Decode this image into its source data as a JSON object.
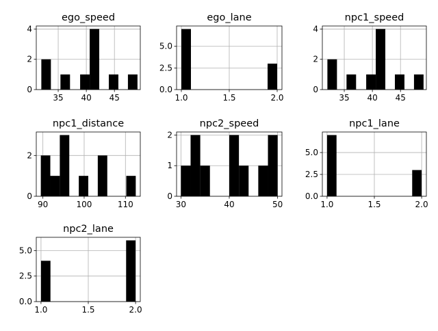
{
  "figure": {
    "background": "#ffffff"
  },
  "chart_data": [
    {
      "type": "bar",
      "title": "ego_speed",
      "xlabel": "",
      "ylabel": "",
      "xlim": [
        31.1,
        49.6
      ],
      "ylim": [
        0,
        4.2
      ],
      "xticks": [
        35,
        40,
        45
      ],
      "xtick_labels": [
        "35",
        "40",
        "45"
      ],
      "yticks": [
        0,
        2,
        4
      ],
      "ytick_labels": [
        "0",
        "2",
        "4"
      ],
      "grid": true,
      "color": "#000000",
      "bins": [
        {
          "x0": 32,
          "x1": 33.7,
          "count": 2
        },
        {
          "x0": 33.7,
          "x1": 35.4,
          "count": 0
        },
        {
          "x0": 35.4,
          "x1": 37.1,
          "count": 1
        },
        {
          "x0": 37.1,
          "x1": 38.9,
          "count": 0
        },
        {
          "x0": 38.9,
          "x1": 40.6,
          "count": 1
        },
        {
          "x0": 40.6,
          "x1": 42.3,
          "count": 4
        },
        {
          "x0": 42.3,
          "x1": 44.0,
          "count": 0
        },
        {
          "x0": 44.0,
          "x1": 45.7,
          "count": 1
        },
        {
          "x0": 45.7,
          "x1": 47.4,
          "count": 0
        },
        {
          "x0": 47.4,
          "x1": 49.1,
          "count": 1
        }
      ]
    },
    {
      "type": "bar",
      "title": "ego_lane",
      "xlabel": "",
      "ylabel": "",
      "xlim": [
        0.95,
        2.05
      ],
      "ylim": [
        0,
        7.35
      ],
      "xticks": [
        1.0,
        1.5,
        2.0
      ],
      "xtick_labels": [
        "1.0",
        "1.5",
        "2.0"
      ],
      "yticks": [
        0,
        2.5,
        5.0
      ],
      "ytick_labels": [
        "0.0",
        "2.5",
        "5.0"
      ],
      "grid": true,
      "color": "#000000",
      "bins": [
        {
          "x0": 1.0,
          "x1": 1.1,
          "count": 7
        },
        {
          "x0": 1.1,
          "x1": 1.2,
          "count": 0
        },
        {
          "x0": 1.2,
          "x1": 1.3,
          "count": 0
        },
        {
          "x0": 1.3,
          "x1": 1.4,
          "count": 0
        },
        {
          "x0": 1.4,
          "x1": 1.5,
          "count": 0
        },
        {
          "x0": 1.5,
          "x1": 1.6,
          "count": 0
        },
        {
          "x0": 1.6,
          "x1": 1.7,
          "count": 0
        },
        {
          "x0": 1.7,
          "x1": 1.8,
          "count": 0
        },
        {
          "x0": 1.8,
          "x1": 1.9,
          "count": 0
        },
        {
          "x0": 1.9,
          "x1": 2.0,
          "count": 3
        }
      ]
    },
    {
      "type": "bar",
      "title": "npc1_speed",
      "xlabel": "",
      "ylabel": "",
      "xlim": [
        31.1,
        49.6
      ],
      "ylim": [
        0,
        4.2
      ],
      "xticks": [
        35,
        40,
        45
      ],
      "xtick_labels": [
        "35",
        "40",
        "45"
      ],
      "yticks": [
        0,
        2,
        4
      ],
      "ytick_labels": [
        "0",
        "2",
        "4"
      ],
      "grid": true,
      "color": "#000000",
      "bins": [
        {
          "x0": 32,
          "x1": 33.7,
          "count": 2
        },
        {
          "x0": 33.7,
          "x1": 35.4,
          "count": 0
        },
        {
          "x0": 35.4,
          "x1": 37.1,
          "count": 1
        },
        {
          "x0": 37.1,
          "x1": 38.9,
          "count": 0
        },
        {
          "x0": 38.9,
          "x1": 40.6,
          "count": 1
        },
        {
          "x0": 40.6,
          "x1": 42.3,
          "count": 4
        },
        {
          "x0": 42.3,
          "x1": 44.0,
          "count": 0
        },
        {
          "x0": 44.0,
          "x1": 45.7,
          "count": 1
        },
        {
          "x0": 45.7,
          "x1": 47.4,
          "count": 0
        },
        {
          "x0": 47.4,
          "x1": 49.1,
          "count": 1
        }
      ]
    },
    {
      "type": "bar",
      "title": "npc1_distance",
      "xlabel": "",
      "ylabel": "",
      "xlim": [
        88.4,
        113.6
      ],
      "ylim": [
        0,
        3.15
      ],
      "xticks": [
        90,
        100,
        110
      ],
      "xtick_labels": [
        "90",
        "100",
        "110"
      ],
      "yticks": [
        0,
        2
      ],
      "ytick_labels": [
        "0",
        "2"
      ],
      "grid": true,
      "color": "#000000",
      "bins": [
        {
          "x0": 89.5,
          "x1": 91.8,
          "count": 2
        },
        {
          "x0": 91.8,
          "x1": 94.1,
          "count": 1
        },
        {
          "x0": 94.1,
          "x1": 96.4,
          "count": 3
        },
        {
          "x0": 96.4,
          "x1": 98.7,
          "count": 0
        },
        {
          "x0": 98.7,
          "x1": 101.0,
          "count": 1
        },
        {
          "x0": 101.0,
          "x1": 103.3,
          "count": 0
        },
        {
          "x0": 103.3,
          "x1": 105.6,
          "count": 2
        },
        {
          "x0": 105.6,
          "x1": 107.9,
          "count": 0
        },
        {
          "x0": 107.9,
          "x1": 110.2,
          "count": 0
        },
        {
          "x0": 110.2,
          "x1": 112.5,
          "count": 1
        }
      ]
    },
    {
      "type": "bar",
      "title": "npc2_speed",
      "xlabel": "",
      "ylabel": "",
      "xlim": [
        29.1,
        50.9
      ],
      "ylim": [
        0,
        2.1
      ],
      "xticks": [
        30,
        40,
        50
      ],
      "xtick_labels": [
        "30",
        "40",
        "50"
      ],
      "yticks": [
        0,
        1,
        2
      ],
      "ytick_labels": [
        "0",
        "1",
        "2"
      ],
      "grid": true,
      "color": "#000000",
      "bins": [
        {
          "x0": 30,
          "x1": 32,
          "count": 1
        },
        {
          "x0": 32,
          "x1": 34,
          "count": 2
        },
        {
          "x0": 34,
          "x1": 36,
          "count": 1
        },
        {
          "x0": 36,
          "x1": 38,
          "count": 0
        },
        {
          "x0": 38,
          "x1": 40,
          "count": 0
        },
        {
          "x0": 40,
          "x1": 42,
          "count": 2
        },
        {
          "x0": 42,
          "x1": 44,
          "count": 1
        },
        {
          "x0": 44,
          "x1": 46,
          "count": 0
        },
        {
          "x0": 46,
          "x1": 48,
          "count": 1
        },
        {
          "x0": 48,
          "x1": 50,
          "count": 2
        }
      ]
    },
    {
      "type": "bar",
      "title": "npc1_lane",
      "xlabel": "",
      "ylabel": "",
      "xlim": [
        0.95,
        2.05
      ],
      "ylim": [
        0,
        7.35
      ],
      "xticks": [
        1.0,
        1.5,
        2.0
      ],
      "xtick_labels": [
        "1.0",
        "1.5",
        "2.0"
      ],
      "yticks": [
        0,
        2.5,
        5.0
      ],
      "ytick_labels": [
        "0.0",
        "2.5",
        "5.0"
      ],
      "grid": true,
      "color": "#000000",
      "bins": [
        {
          "x0": 1.0,
          "x1": 1.1,
          "count": 7
        },
        {
          "x0": 1.1,
          "x1": 1.2,
          "count": 0
        },
        {
          "x0": 1.2,
          "x1": 1.3,
          "count": 0
        },
        {
          "x0": 1.3,
          "x1": 1.4,
          "count": 0
        },
        {
          "x0": 1.4,
          "x1": 1.5,
          "count": 0
        },
        {
          "x0": 1.5,
          "x1": 1.6,
          "count": 0
        },
        {
          "x0": 1.6,
          "x1": 1.7,
          "count": 0
        },
        {
          "x0": 1.7,
          "x1": 1.8,
          "count": 0
        },
        {
          "x0": 1.8,
          "x1": 1.9,
          "count": 0
        },
        {
          "x0": 1.9,
          "x1": 2.0,
          "count": 3
        }
      ]
    },
    {
      "type": "bar",
      "title": "npc2_lane",
      "xlabel": "",
      "ylabel": "",
      "xlim": [
        0.95,
        2.05
      ],
      "ylim": [
        0,
        6.3
      ],
      "xticks": [
        1.0,
        1.5,
        2.0
      ],
      "xtick_labels": [
        "1.0",
        "1.5",
        "2.0"
      ],
      "yticks": [
        0,
        2.5,
        5.0
      ],
      "ytick_labels": [
        "0.0",
        "2.5",
        "5.0"
      ],
      "grid": true,
      "color": "#000000",
      "bins": [
        {
          "x0": 1.0,
          "x1": 1.1,
          "count": 4
        },
        {
          "x0": 1.1,
          "x1": 1.2,
          "count": 0
        },
        {
          "x0": 1.2,
          "x1": 1.3,
          "count": 0
        },
        {
          "x0": 1.3,
          "x1": 1.4,
          "count": 0
        },
        {
          "x0": 1.4,
          "x1": 1.5,
          "count": 0
        },
        {
          "x0": 1.5,
          "x1": 1.6,
          "count": 0
        },
        {
          "x0": 1.6,
          "x1": 1.7,
          "count": 0
        },
        {
          "x0": 1.7,
          "x1": 1.8,
          "count": 0
        },
        {
          "x0": 1.8,
          "x1": 1.9,
          "count": 0
        },
        {
          "x0": 1.9,
          "x1": 2.0,
          "count": 6
        }
      ]
    }
  ]
}
